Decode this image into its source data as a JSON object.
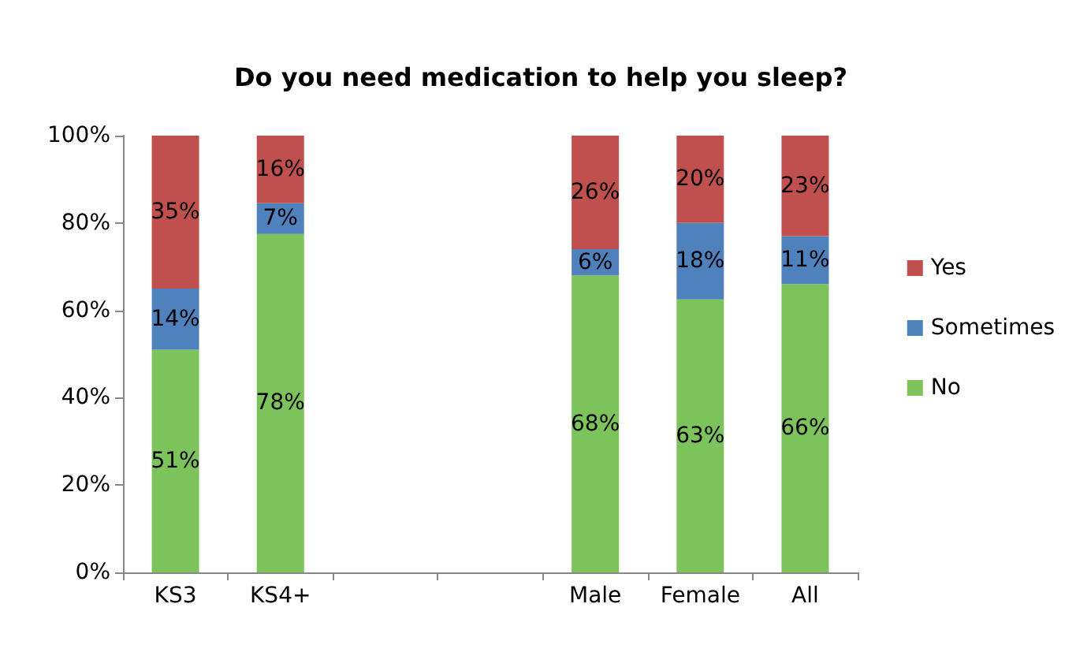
{
  "chart_data": {
    "type": "bar",
    "title": "Do you need medication to help you sleep?",
    "stacked": true,
    "categories": [
      "KS3",
      "KS4+",
      null,
      null,
      "Male",
      "Female",
      "All"
    ],
    "series": [
      {
        "name": "No",
        "color": "#7dc35b",
        "values": [
          51,
          77.5,
          null,
          null,
          68,
          62.5,
          66
        ],
        "value_labels": [
          "51%",
          "78%",
          null,
          null,
          "68%",
          "63%",
          "66%"
        ]
      },
      {
        "name": "Sometimes",
        "color": "#4f81bd",
        "values": [
          14,
          7,
          null,
          null,
          6,
          17.5,
          11
        ],
        "value_labels": [
          "14%",
          "7%",
          null,
          null,
          "6%",
          "18%",
          "11%"
        ]
      },
      {
        "name": "Yes",
        "color": "#c0504d",
        "values": [
          35,
          15.5,
          null,
          null,
          26,
          20,
          23
        ],
        "value_labels": [
          "35%",
          "16%",
          null,
          null,
          "26%",
          "20%",
          "23%"
        ]
      }
    ],
    "ylim": [
      0,
      100
    ],
    "yticks": [
      {
        "value": 0,
        "label": "0%"
      },
      {
        "value": 20,
        "label": "20%"
      },
      {
        "value": 40,
        "label": "40%"
      },
      {
        "value": 60,
        "label": "60%"
      },
      {
        "value": 80,
        "label": "80%"
      },
      {
        "value": 100,
        "label": "100%"
      }
    ],
    "grid": false,
    "legend": "right"
  }
}
